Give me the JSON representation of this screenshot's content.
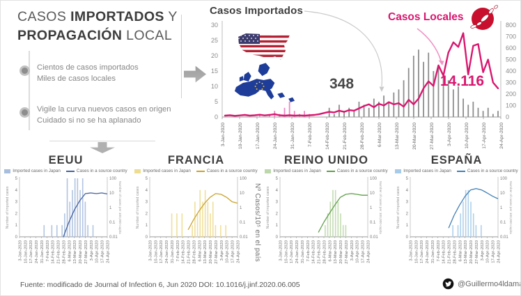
{
  "colors": {
    "pink": "#d9166f",
    "pink_light": "#ef86c3",
    "gray_bar": "#8d8d8d",
    "text_dark": "#3d3d3d",
    "text_gray": "#878787",
    "axis": "#c8c8c8"
  },
  "left_panel": {
    "title": {
      "l1a": "CASOS",
      "l1b": "IMPORTADOS",
      "l1c": "Y",
      "l2a": "PROPAGACIÓN",
      "l2b": "LOCAL"
    },
    "bullets": [
      {
        "line1": "Cientos de casos importados",
        "line2": "Miles de casos locales"
      },
      {
        "line1": "Vigile la curva nuevos casos en origen",
        "line2": "Cuidado si no se ha aplanado"
      }
    ]
  },
  "main_chart": {
    "label_imported": "Casos Importados",
    "label_local": "Casos Locales",
    "total_imported": "348",
    "total_local": "14.116"
  },
  "bottom": {
    "legend_bar": "Imported cases in Japan",
    "legend_line": "Cases in a source country",
    "middle_ylabel": "Nº Casos/10⁵ en el país"
  },
  "footer": {
    "source": "Fuente: modificado de Journal of Infection 6, Jun 2020 DOI: 10.1016/j.jinf.2020.06.005",
    "handle": "@Guillermo4ldama"
  },
  "chart_data": {
    "categories": [
      "3-Jan-2020",
      "10-Jan-2020",
      "17-Jan-2020",
      "24-Jan-2020",
      "31-Jan-2020",
      "7-Feb-2020",
      "14-Feb-2020",
      "21-Feb-2020",
      "28-Feb-2020",
      "6-Mar-2020",
      "13-Mar-2020",
      "20-Mar-2020",
      "27-Mar-2020",
      "3-Apr-2020",
      "10-Apr-2020",
      "17-Apr-2020",
      "24-Apr-2020"
    ],
    "charts": [
      {
        "name": "casos-importados-vs-locales-japon",
        "type": "bar+line",
        "y_left": {
          "range": [
            0,
            30
          ],
          "ticks": [
            30,
            25,
            20,
            15,
            10,
            5,
            0
          ]
        },
        "y_right": {
          "range": [
            0,
            800
          ],
          "ticks": [
            800,
            700,
            600,
            500,
            400,
            300,
            200,
            100,
            0
          ]
        },
        "series": [
          {
            "name": "Casos Importados",
            "type": "bar",
            "axis": "left",
            "color": "#8d8d8d",
            "values": [
              0,
              0,
              0,
              0,
              0,
              0,
              0,
              0,
              0,
              0,
              0,
              0,
              0,
              0,
              0,
              0,
              0,
              0,
              0,
              0,
              0,
              3,
              1,
              4,
              2,
              3,
              2,
              5,
              4,
              3,
              6,
              5,
              7,
              5,
              8,
              9,
              12,
              16,
              20,
              22,
              18,
              21,
              15,
              17,
              13,
              12,
              9,
              10,
              6,
              4,
              5,
              3,
              2,
              3,
              1,
              2
            ]
          },
          {
            "name": "Casos Locales (brote inicial)",
            "type": "bar",
            "axis": "left",
            "color": "#ef86c3",
            "values": [
              0,
              0,
              0,
              0,
              0,
              0,
              0,
              1,
              0,
              1,
              2,
              1,
              3,
              5,
              2,
              1,
              2,
              1,
              0,
              0,
              0,
              0,
              0,
              0,
              0,
              0,
              0,
              0,
              0,
              0,
              0,
              0,
              0,
              0,
              0,
              0,
              0,
              0,
              0,
              0,
              0,
              0,
              0,
              0,
              0,
              0,
              0,
              0,
              0,
              0,
              0,
              0,
              0,
              0,
              0,
              0
            ]
          },
          {
            "name": "Casos Locales",
            "type": "line",
            "axis": "right",
            "color": "#d9166f",
            "values": [
              12,
              15,
              10,
              14,
              18,
              12,
              15,
              20,
              14,
              18,
              25,
              15,
              12,
              15,
              12,
              14,
              12,
              15,
              18,
              25,
              35,
              45,
              40,
              55,
              45,
              60,
              55,
              75,
              95,
              110,
              85,
              115,
              100,
              130,
              110,
              120,
              90,
              150,
              110,
              160,
              250,
              310,
              270,
              450,
              360,
              560,
              650,
              610,
              730,
              370,
              620,
              635,
              390,
              500,
              300,
              250
            ]
          }
        ],
        "annotations": [
          {
            "text": "348",
            "series": "Casos Importados"
          },
          {
            "text": "14.116",
            "series": "Casos Locales"
          }
        ]
      },
      {
        "title": "EEUU",
        "type": "bar+line",
        "bar_color": "#a9bede",
        "line_color": "#44619c",
        "y_left": {
          "label": "Number of imported cases",
          "range": [
            0,
            5
          ],
          "ticks": [
            5,
            4,
            3,
            2,
            1,
            0
          ]
        },
        "y_right": {
          "label": "Number of cases per 100,000-capita",
          "scale": "log",
          "ticks": [
            "100",
            "10",
            "1",
            "0.1",
            "0.01"
          ]
        },
        "bars": [
          0,
          0,
          0,
          0,
          0,
          0,
          0,
          0,
          0,
          1,
          0,
          0,
          1,
          0,
          1,
          0,
          1,
          2,
          5,
          3,
          4,
          5,
          5,
          4,
          5,
          3,
          1,
          0,
          1,
          0,
          0,
          0,
          0,
          0
        ],
        "line": [
          null,
          null,
          null,
          null,
          null,
          null,
          null,
          null,
          0.01,
          0.1,
          0.7,
          3,
          9,
          10,
          9,
          10,
          8.5
        ]
      },
      {
        "title": "FRANCIA",
        "type": "bar+line",
        "bar_color": "#eedc8f",
        "line_color": "#c8a22b",
        "y_left": {
          "label": "Number of imported cases",
          "range": [
            0,
            5
          ],
          "ticks": [
            5,
            4,
            3,
            2,
            1,
            0
          ]
        },
        "y_right": {
          "label": "",
          "scale": "log",
          "ticks": [
            "100",
            "10",
            "1",
            "0.1",
            "0.01"
          ]
        },
        "bars": [
          0,
          0,
          0,
          0,
          0,
          0,
          0,
          0,
          2,
          0,
          2,
          0,
          2,
          0,
          0,
          0,
          1,
          3,
          2,
          4,
          3,
          4,
          3,
          2,
          3,
          1,
          0,
          1,
          0,
          1,
          0,
          0,
          0,
          0
        ],
        "line": [
          null,
          null,
          null,
          null,
          null,
          null,
          null,
          0.03,
          0.15,
          0.6,
          2,
          5,
          9,
          8,
          5,
          2.5,
          2
        ]
      },
      {
        "title": "REINO UNIDO",
        "type": "bar+line",
        "bar_color": "#bcd8aa",
        "line_color": "#5f9e49",
        "y_left": {
          "label": "Number of imported cases",
          "range": [
            0,
            5
          ],
          "ticks": [
            5,
            4,
            3,
            2,
            1,
            0
          ]
        },
        "y_right": {
          "label": "Number of cases per 100,000-capita",
          "scale": "log",
          "ticks": [
            "100",
            "10",
            "1",
            "0.1",
            "0.01"
          ]
        },
        "bars": [
          0,
          0,
          0,
          0,
          0,
          0,
          0,
          0,
          0,
          0,
          0,
          0,
          0,
          0,
          0,
          0,
          0,
          1,
          2,
          3,
          4,
          4,
          3,
          2,
          1,
          1,
          0,
          0,
          0,
          0,
          0,
          0,
          0,
          0
        ],
        "line": [
          null,
          null,
          null,
          null,
          null,
          null,
          null,
          0.02,
          0.1,
          0.4,
          1.5,
          5,
          8,
          9,
          8,
          7,
          7
        ]
      },
      {
        "title": "ESPAÑA",
        "type": "bar+line",
        "bar_color": "#a6cbe8",
        "line_color": "#3f7fb5",
        "y_left": {
          "label": "Number of imported cases",
          "range": [
            0,
            5
          ],
          "ticks": [
            5,
            4,
            3,
            2,
            1,
            0
          ]
        },
        "y_right": {
          "label": "Number of cases per 100,000-capita",
          "scale": "log",
          "ticks": [
            "100",
            "10",
            "1",
            "0.1",
            "0.01"
          ]
        },
        "bars": [
          0,
          0,
          0,
          0,
          0,
          0,
          0,
          0,
          0,
          0,
          0,
          0,
          0,
          0,
          0,
          0,
          1,
          0,
          1,
          2,
          3,
          4,
          4,
          3,
          2,
          1,
          0,
          1,
          0,
          0,
          0,
          0,
          0,
          0
        ],
        "line": [
          null,
          null,
          null,
          null,
          null,
          null,
          null,
          0.04,
          0.3,
          1.5,
          6,
          16,
          20,
          16,
          10,
          6,
          4
        ]
      }
    ]
  }
}
